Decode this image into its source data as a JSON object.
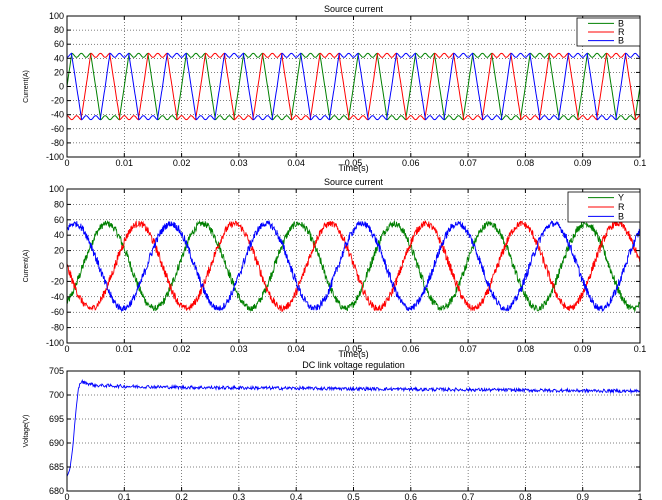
{
  "chart_data": [
    {
      "type": "line",
      "title": "Source current",
      "xlabel": "Time(s)",
      "ylabel": "Current(A)",
      "xlim": [
        0,
        0.1
      ],
      "ylim": [
        -100,
        100
      ],
      "x_ticks": [
        0,
        0.01,
        0.02,
        0.03,
        0.04,
        0.05,
        0.06,
        0.07,
        0.08,
        0.09,
        0.1
      ],
      "x_tick_labels": [
        "0",
        "0.01",
        "0.02",
        "0.03",
        "0.04",
        "0.05",
        "0.06",
        "0.07",
        "0.08",
        "0.09",
        "0.1"
      ],
      "y_ticks": [
        -100,
        -80,
        -60,
        -40,
        -20,
        0,
        20,
        40,
        60,
        80,
        100
      ],
      "y_tick_labels": [
        "-100",
        "-80",
        "-60",
        "-40",
        "-20",
        "0",
        "20",
        "40",
        "60",
        "80",
        "100"
      ],
      "grid": true,
      "legend_position": "top-right",
      "waveform": "quasi-square",
      "period_s": 0.01,
      "amplitude": 47,
      "noise": 0,
      "series": [
        {
          "name": "B",
          "color": "#008000",
          "phase_deg": 0
        },
        {
          "name": "R",
          "color": "#ff0000",
          "phase_deg": -120
        },
        {
          "name": "B",
          "color": "#0000ff",
          "phase_deg": 120
        }
      ]
    },
    {
      "type": "line",
      "title": "Source current",
      "xlabel": "Time(s)",
      "ylabel": "Current(A)",
      "xlim": [
        0,
        0.1
      ],
      "ylim": [
        -100,
        100
      ],
      "x_ticks": [
        0,
        0.01,
        0.02,
        0.03,
        0.04,
        0.05,
        0.06,
        0.07,
        0.08,
        0.09,
        0.1
      ],
      "x_tick_labels": [
        "0",
        "0.01",
        "0.02",
        "0.03",
        "0.04",
        "0.05",
        "0.06",
        "0.07",
        "0.08",
        "0.09",
        "0.1"
      ],
      "y_ticks": [
        -100,
        -80,
        -60,
        -40,
        -20,
        0,
        20,
        40,
        60,
        80,
        100
      ],
      "y_tick_labels": [
        "-100",
        "-80",
        "-60",
        "-40",
        "-20",
        "0",
        "20",
        "40",
        "60",
        "80",
        "100"
      ],
      "grid": true,
      "legend_position": "top-right",
      "waveform": "sine",
      "period_s": 0.0167,
      "amplitude": 55,
      "noise": 6,
      "series": [
        {
          "name": "Y",
          "color": "#008000",
          "phase_deg": -60
        },
        {
          "name": "R",
          "color": "#ff0000",
          "phase_deg": 180
        },
        {
          "name": "B",
          "color": "#0000ff",
          "phase_deg": 60
        }
      ]
    },
    {
      "type": "line",
      "title": "DC link voltage regulation",
      "xlabel": "",
      "ylabel": "Voltage(V)",
      "xlim": [
        0,
        1
      ],
      "ylim": [
        680,
        705
      ],
      "x_ticks": [
        0,
        0.1,
        0.2,
        0.3,
        0.4,
        0.5,
        0.6,
        0.7,
        0.8,
        0.9,
        1
      ],
      "x_tick_labels": [
        "0",
        "0.1",
        "0.2",
        "0.3",
        "0.4",
        "0.5",
        "0.6",
        "0.7",
        "0.8",
        "0.9",
        "1"
      ],
      "y_ticks": [
        680,
        685,
        690,
        695,
        700,
        705
      ],
      "y_tick_labels": [
        "680",
        "685",
        "690",
        "695",
        "700",
        "705"
      ],
      "grid": true,
      "series": [
        {
          "name": "",
          "color": "#0000ff",
          "x": [
            0,
            0.005,
            0.01,
            0.015,
            0.02,
            0.025,
            0.03,
            0.04,
            0.05,
            0.08,
            0.1,
            0.2,
            0.3,
            0.4,
            0.5,
            0.6,
            0.7,
            0.8,
            0.9,
            1.0
          ],
          "y": [
            683,
            684.5,
            689,
            696,
            701.5,
            702.8,
            702.6,
            702.3,
            702.0,
            701.9,
            701.8,
            701.6,
            701.5,
            701.4,
            701.3,
            701.2,
            701.1,
            701.0,
            700.9,
            700.8
          ],
          "noise": 0.35
        }
      ]
    }
  ]
}
